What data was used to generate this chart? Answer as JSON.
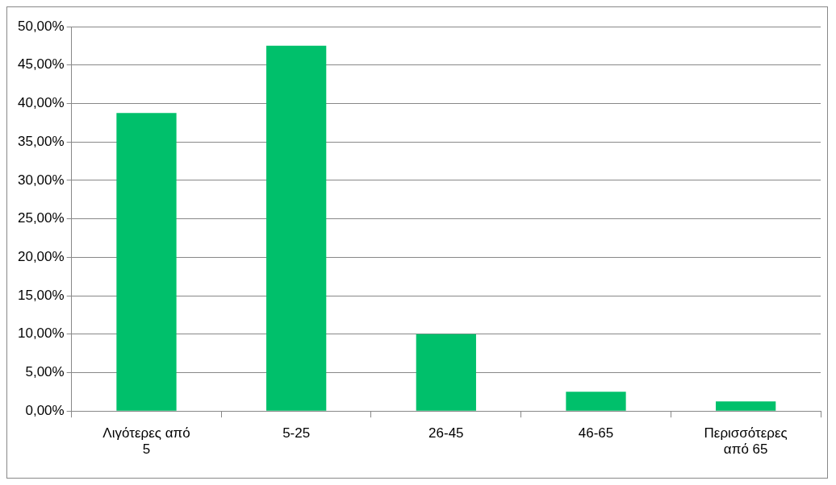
{
  "chart_data": {
    "type": "bar",
    "categories": [
      "Λιγότερες από 5",
      "5-25",
      "26-45",
      "46-65",
      "Περισσότερες από 65"
    ],
    "values": [
      38.75,
      47.5,
      10,
      2.5,
      1.25
    ],
    "color": "#00c06b",
    "ylim": [
      0,
      50
    ],
    "yticks": [
      {
        "value": 0,
        "label": "0,00%"
      },
      {
        "value": 5,
        "label": "5,00%"
      },
      {
        "value": 10,
        "label": "10,00%"
      },
      {
        "value": 15,
        "label": "15,00%"
      },
      {
        "value": 20,
        "label": "20,00%"
      },
      {
        "value": 25,
        "label": "25,00%"
      },
      {
        "value": 30,
        "label": "30,00%"
      },
      {
        "value": 35,
        "label": "35,00%"
      },
      {
        "value": 40,
        "label": "40,00%"
      },
      {
        "value": 45,
        "label": "45,00%"
      },
      {
        "value": 50,
        "label": "50,00%"
      }
    ],
    "grid": "y",
    "legend": false
  }
}
